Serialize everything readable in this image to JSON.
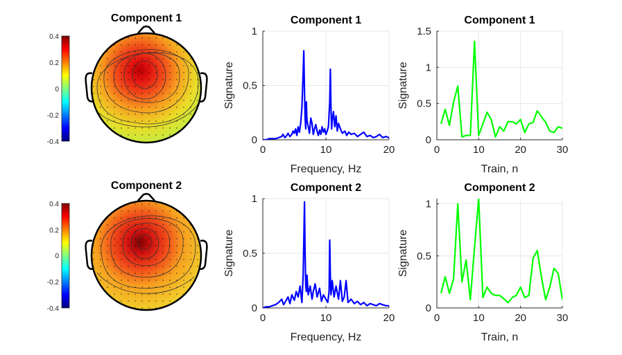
{
  "chart_data": [
    {
      "type": "heatmap",
      "kind": "topoplot",
      "title": "Component 1",
      "colorbar": {
        "ticks": [
          "0.4",
          "0.2",
          "0",
          "-0.2",
          "-0.4"
        ],
        "range": [
          -0.4,
          0.4
        ]
      },
      "peak_value": 0.4,
      "peak_location": "center-front"
    },
    {
      "type": "line",
      "title": "Component 1",
      "xlabel": "Frequency, Hz",
      "ylabel": "Signature",
      "xlim": [
        0,
        20
      ],
      "ylim": [
        0,
        1
      ],
      "xticks": [
        "0",
        "10",
        "20"
      ],
      "yticks": [
        "0",
        "0.5",
        "1"
      ],
      "color": "#0000ff",
      "x": [
        0,
        0.5,
        1,
        1.5,
        2,
        2.5,
        3,
        3.2,
        3.5,
        3.8,
        4,
        4.3,
        4.6,
        4.8,
        5,
        5.2,
        5.4,
        5.6,
        5.8,
        6,
        6.2,
        6.4,
        6.5,
        6.6,
        6.7,
        6.8,
        6.9,
        7,
        7.2,
        7.4,
        7.6,
        7.8,
        8,
        8.2,
        8.4,
        8.6,
        8.8,
        9,
        9.2,
        9.4,
        9.6,
        9.8,
        10,
        10.2,
        10.4,
        10.6,
        10.7,
        10.8,
        10.9,
        11,
        11.2,
        11.4,
        11.6,
        11.8,
        12,
        12.3,
        12.6,
        13,
        13.3,
        13.6,
        14,
        14.5,
        15,
        15.5,
        16,
        16.5,
        17,
        17.5,
        18,
        18.5,
        19,
        19.5,
        20
      ],
      "y": [
        0,
        0,
        0.01,
        0.01,
        0.01,
        0.02,
        0.03,
        0.05,
        0.02,
        0.04,
        0.06,
        0.03,
        0.05,
        0.08,
        0.06,
        0.1,
        0.04,
        0.12,
        0.07,
        0.15,
        0.3,
        0.62,
        0.82,
        0.45,
        0.2,
        0.1,
        0.35,
        0.18,
        0.12,
        0.06,
        0.2,
        0.15,
        0.05,
        0.1,
        0.14,
        0.08,
        0.04,
        0.09,
        0.05,
        0.12,
        0.07,
        0.1,
        0.05,
        0.08,
        0.12,
        0.35,
        0.65,
        0.3,
        0.1,
        0.18,
        0.26,
        0.12,
        0.22,
        0.08,
        0.15,
        0.1,
        0.06,
        0.08,
        0.04,
        0.07,
        0.05,
        0.06,
        0.03,
        0.05,
        0.07,
        0.03,
        0.04,
        0.02,
        0.03,
        0.05,
        0.02,
        0.03,
        0.02
      ]
    },
    {
      "type": "line",
      "title": "Component 1",
      "xlabel": "Train, n",
      "ylabel": "Signature",
      "xlim": [
        0,
        30
      ],
      "ylim": [
        0,
        1.5
      ],
      "xticks": [
        "0",
        "10",
        "20",
        "30"
      ],
      "yticks": [
        "0",
        "0.5",
        "1",
        "1.5"
      ],
      "color": "#00ff00",
      "x": [
        1,
        2,
        3,
        4,
        5,
        6,
        7,
        8,
        9,
        10,
        11,
        12,
        13,
        14,
        15,
        16,
        17,
        18,
        19,
        20,
        21,
        22,
        23,
        24,
        25,
        26,
        27,
        28,
        29,
        30
      ],
      "y": [
        0.22,
        0.42,
        0.2,
        0.52,
        0.74,
        0.04,
        0.06,
        0.06,
        1.36,
        0.06,
        0.22,
        0.38,
        0.28,
        0.04,
        0.18,
        0.12,
        0.25,
        0.25,
        0.22,
        0.28,
        0.1,
        0.22,
        0.24,
        0.4,
        0.32,
        0.24,
        0.12,
        0.1,
        0.18,
        0.16
      ]
    },
    {
      "type": "heatmap",
      "kind": "topoplot",
      "title": "Component 2",
      "colorbar": {
        "ticks": [
          "0.4",
          "0.2",
          "0",
          "-0.2",
          "-0.4"
        ],
        "range": [
          -0.4,
          0.4
        ]
      },
      "peak_value": 0.4,
      "peak_location": "center"
    },
    {
      "type": "line",
      "title": "Component 2",
      "xlabel": "Frequency, Hz",
      "ylabel": "Signature",
      "xlim": [
        0,
        20
      ],
      "ylim": [
        0,
        1
      ],
      "xticks": [
        "0",
        "10",
        "20"
      ],
      "yticks": [
        "0",
        "0.5",
        "1"
      ],
      "color": "#0000ff",
      "x": [
        0,
        0.5,
        1,
        1.5,
        2,
        2.5,
        3,
        3.3,
        3.6,
        4,
        4.3,
        4.6,
        5,
        5.3,
        5.6,
        5.9,
        6.2,
        6.4,
        6.5,
        6.6,
        6.7,
        6.8,
        6.9,
        7,
        7.2,
        7.5,
        7.8,
        8,
        8.3,
        8.6,
        9,
        9.3,
        9.6,
        10,
        10.3,
        10.5,
        10.6,
        10.7,
        10.8,
        10.9,
        11,
        11.3,
        11.6,
        12,
        12.3,
        12.6,
        12.9,
        13.2,
        13.5,
        14,
        14.5,
        15,
        15.5,
        16,
        16.5,
        17,
        17.5,
        18,
        18.5,
        19,
        19.5,
        20
      ],
      "y": [
        0,
        0.01,
        0.01,
        0.02,
        0.03,
        0.05,
        0.08,
        0.03,
        0.06,
        0.1,
        0.04,
        0.12,
        0.07,
        0.15,
        0.1,
        0.2,
        0.05,
        0.3,
        0.6,
        0.97,
        0.5,
        0.2,
        0.15,
        0.3,
        0.12,
        0.2,
        0.08,
        0.15,
        0.22,
        0.1,
        0.18,
        0.06,
        0.12,
        0.08,
        0.05,
        0.15,
        0.62,
        0.3,
        0.12,
        0.18,
        0.25,
        0.1,
        0.2,
        0.08,
        0.25,
        0.06,
        0.1,
        0.25,
        0.05,
        0.08,
        0.04,
        0.06,
        0.03,
        0.05,
        0.02,
        0.04,
        0.03,
        0.02,
        0.04,
        0.03,
        0.02,
        0.02
      ]
    },
    {
      "type": "line",
      "title": "Component 2",
      "xlabel": "Train, n",
      "ylabel": "Signature",
      "xlim": [
        0,
        30
      ],
      "ylim": [
        0,
        1.05
      ],
      "xticks": [
        "0",
        "10",
        "20",
        "30"
      ],
      "yticks": [
        "0",
        "0.5",
        "1"
      ],
      "color": "#00ff00",
      "x": [
        1,
        2,
        3,
        4,
        5,
        6,
        7,
        8,
        9,
        10,
        11,
        12,
        13,
        14,
        15,
        16,
        17,
        18,
        19,
        20,
        21,
        22,
        23,
        24,
        25,
        26,
        27,
        28,
        29,
        30
      ],
      "y": [
        0.14,
        0.3,
        0.14,
        0.28,
        1.0,
        0.25,
        0.46,
        0.08,
        0.58,
        1.05,
        0.1,
        0.2,
        0.14,
        0.12,
        0.12,
        0.09,
        0.05,
        0.1,
        0.12,
        0.2,
        0.1,
        0.12,
        0.48,
        0.55,
        0.3,
        0.08,
        0.2,
        0.38,
        0.33,
        0.08
      ]
    }
  ]
}
